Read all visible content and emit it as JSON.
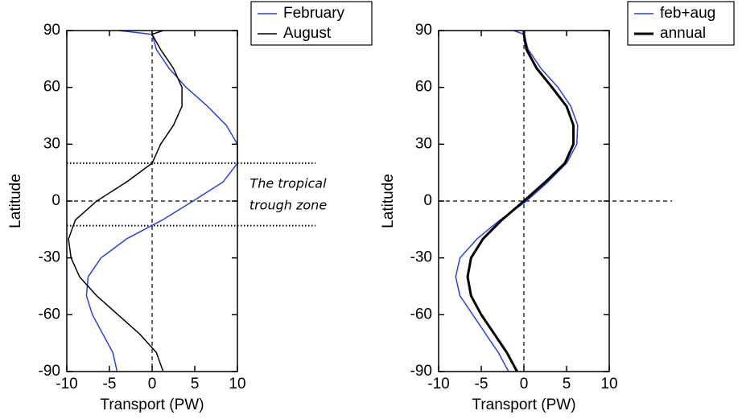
{
  "chart_data": [
    {
      "type": "line",
      "xlabel": "Transport (PW)",
      "ylabel": "Latitude",
      "y": [
        90,
        88,
        80,
        70,
        60,
        50,
        40,
        30,
        20,
        10,
        0,
        -10,
        -20,
        -30,
        -40,
        -50,
        -60,
        -70,
        -80,
        -90
      ],
      "series": [
        {
          "name": "February",
          "color": "#2f3fe0",
          "linewidth": 1.5,
          "values": [
            -3.9,
            0,
            0.5,
            2,
            4,
            6.5,
            8.7,
            10,
            10,
            8.3,
            4.8,
            1.2,
            -3,
            -6,
            -7.5,
            -7.7,
            -7,
            -5.8,
            -4.6,
            -4.1
          ]
        },
        {
          "name": "August",
          "color": "#000000",
          "linewidth": 1.5,
          "values": [
            1.3,
            0,
            1,
            2.5,
            3.5,
            3.5,
            2.5,
            1,
            0,
            -3,
            -6.5,
            -9,
            -9.8,
            -9.5,
            -8.5,
            -6.5,
            -4,
            -1.5,
            0.5,
            1.3
          ]
        }
      ],
      "xlim": [
        -10,
        10
      ],
      "ylim": [
        -90,
        90
      ],
      "xticks": [
        -10,
        -5,
        0,
        5,
        10
      ],
      "yticks": [
        -90,
        -60,
        -30,
        0,
        30,
        60,
        90
      ],
      "hlines": [
        20,
        -13
      ],
      "annotation": [
        "The tropical",
        "trough zone"
      ],
      "legend": "top-right"
    },
    {
      "type": "line",
      "xlabel": "Transport (PW)",
      "ylabel": "Latitude",
      "y": [
        90,
        88,
        80,
        70,
        60,
        50,
        40,
        30,
        20,
        10,
        0,
        -10,
        -20,
        -30,
        -40,
        -50,
        -60,
        -70,
        -80,
        -90
      ],
      "series": [
        {
          "name": "feb+aug",
          "color": "#2f3fe0",
          "linewidth": 1.5,
          "values": [
            -1.2,
            0,
            0.5,
            2,
            4,
            5.5,
            6.3,
            6.2,
            5,
            2.8,
            0.3,
            -2.8,
            -5.5,
            -7.5,
            -8,
            -7.5,
            -6,
            -4.5,
            -3,
            -1.8
          ]
        },
        {
          "name": "annual",
          "color": "#000000",
          "linewidth": 3,
          "values": [
            0,
            0,
            0.3,
            1.5,
            3.3,
            5,
            5.8,
            5.8,
            4.8,
            2.5,
            0,
            -2.6,
            -4.8,
            -6.2,
            -6.6,
            -6.2,
            -5,
            -3.5,
            -2,
            -0.8
          ]
        }
      ],
      "xlim": [
        -10,
        10
      ],
      "ylim": [
        -90,
        90
      ],
      "xticks": [
        -10,
        -5,
        0,
        5,
        10
      ],
      "yticks": [
        -90,
        -60,
        -30,
        0,
        30,
        60,
        90
      ],
      "legend": "top-right"
    }
  ]
}
